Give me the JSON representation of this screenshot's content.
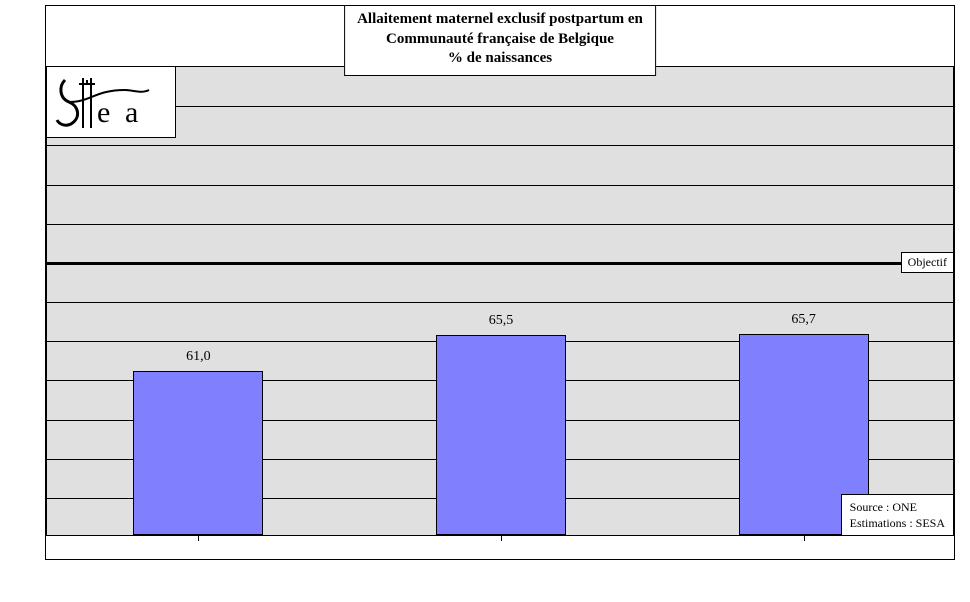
{
  "chart": {
    "type": "bar",
    "title_line1": "Allaitement maternel exclusif postpartum en",
    "title_line2": "Communauté française de Belgique",
    "title_line3": "% de naissances",
    "title_fontsize": 15,
    "background_color": "#ffffff",
    "plot_bg_color": "#e0e0e0",
    "grid_color": "#000000",
    "ylim_min": 40,
    "ylim_max": 100,
    "ytick_step": 5,
    "objectif_value": 75,
    "objectif_label": "Objectif",
    "logo_text": "Sesa",
    "source_line1": "Source : ONE",
    "source_line2": "Estimations : SESA",
    "bars": [
      {
        "label": "61,0",
        "value": 61.0,
        "color": "#8080ff"
      },
      {
        "label": "65,5",
        "value": 65.5,
        "color": "#8080ff"
      },
      {
        "label": "65,7",
        "value": 65.7,
        "color": "#8080ff"
      }
    ],
    "label_fontsize": 14,
    "bar_border_color": "#000000"
  }
}
